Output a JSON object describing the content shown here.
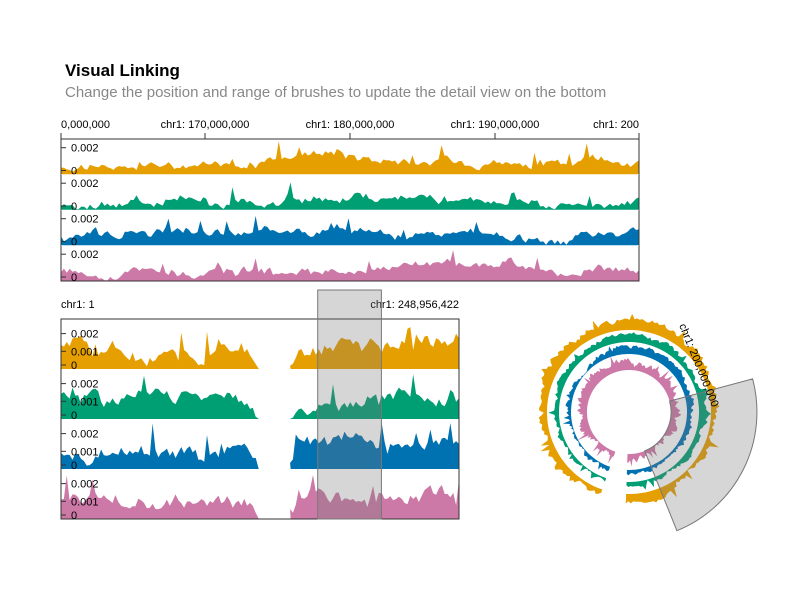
{
  "title": "Visual Linking",
  "subtitle": "Change the position and range of brushes to update the detail view on the bottom",
  "colors": {
    "track1": "#E69F00",
    "track2": "#009E73",
    "track3": "#0072B2",
    "track4": "#CC79A7",
    "brush": "#d3d3d3"
  },
  "chart_data": [
    {
      "type": "area",
      "view": "top-detail",
      "x_ticks": [
        "0,000,000",
        "chr1: 170,000,000",
        "chr1: 180,000,000",
        "chr1: 190,000,000",
        "chr1: 200"
      ],
      "y_ticks": [
        "0.002",
        "0"
      ],
      "ylim": [
        0,
        0.0025
      ],
      "series_colors": [
        "#E69F00",
        "#009E73",
        "#0072B2",
        "#CC79A7"
      ],
      "seeds": [
        11,
        23,
        37,
        53
      ],
      "baselines": [
        0.00095,
        0.00065,
        0.0009,
        0.0008
      ]
    },
    {
      "type": "area",
      "view": "bottom-overview",
      "x_ticks": [
        "chr1: 1",
        "chr1: 248,956,422"
      ],
      "y_ticks": [
        "0.002",
        "0.001",
        "0"
      ],
      "ylim": [
        0,
        0.0026
      ],
      "series_colors": [
        "#E69F00",
        "#009E73",
        "#0072B2",
        "#CC79A7"
      ],
      "seeds": [
        71,
        83,
        97,
        109
      ],
      "gap_fraction": [
        0.497,
        0.577
      ],
      "brush_fraction": [
        0.645,
        0.805
      ]
    },
    {
      "type": "area",
      "view": "circular",
      "label": "chr1: 200,000,000",
      "series_colors": [
        "#E69F00",
        "#009E73",
        "#0072B2",
        "#CC79A7"
      ],
      "seeds": [
        131,
        149,
        167,
        181
      ],
      "brush_angle_deg": [
        75,
        158
      ],
      "gap_angle_deg": [
        182,
        199
      ]
    }
  ]
}
